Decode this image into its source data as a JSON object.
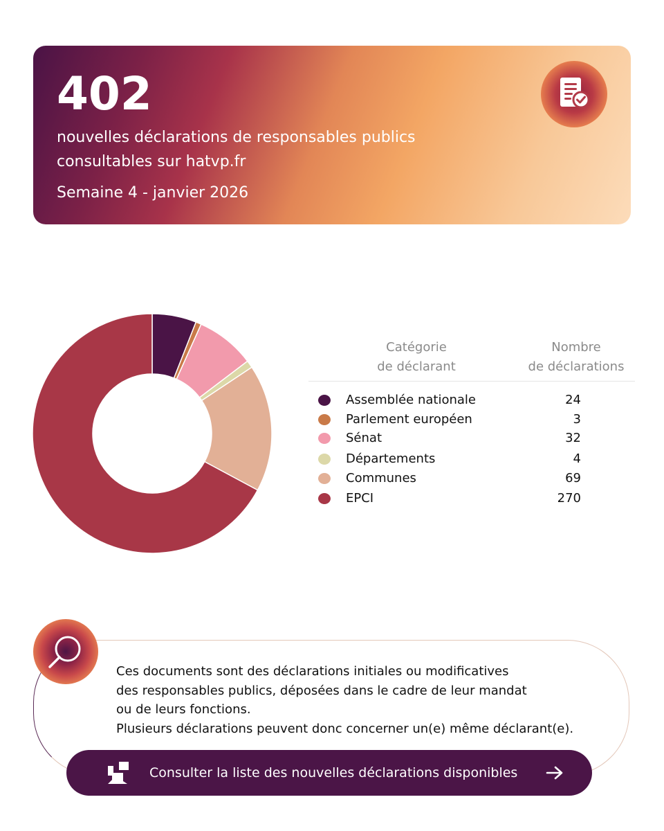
{
  "header": {
    "count": "402",
    "line1": "nouvelles déclarations de responsables publics",
    "line2": "consultables sur hatvp.fr",
    "week": "Semaine 4 - janvier 2026",
    "badge_icon": "document-check-icon"
  },
  "table": {
    "col_category": "Catégorie de déclarant",
    "col_category_l1": "Catégorie",
    "col_category_l2": "de déclarant",
    "col_count_l1": "Nombre",
    "col_count_l2": "de déclarations"
  },
  "chart_data": {
    "type": "pie",
    "donut": true,
    "categories": [
      "Assemblée nationale",
      "Parlement européen",
      "Sénat",
      "Départements",
      "Communes",
      "EPCI"
    ],
    "values": [
      24,
      3,
      32,
      4,
      69,
      270
    ],
    "colors": [
      "#4a1446",
      "#c97a48",
      "#f29aac",
      "#dcd8a8",
      "#e2b096",
      "#a83747"
    ],
    "legend_position": "right"
  },
  "rows": [
    {
      "label": "Assemblée nationale",
      "value": "24"
    },
    {
      "label": "Parlement européen",
      "value": "3"
    },
    {
      "label": "Sénat",
      "value": "32"
    },
    {
      "label": "Départements",
      "value": "4"
    },
    {
      "label": "Communes",
      "value": "69"
    },
    {
      "label": "EPCI",
      "value": "270"
    }
  ],
  "info": {
    "line1": "Ces documents sont des déclarations initiales ou modificatives",
    "line2": "des responsables publics, déposées dans le cadre de leur mandat",
    "line3": "ou de leurs fonctions.",
    "line4": "Plusieurs déclarations peuvent donc concerner un(e) même déclarant(e).",
    "badge_icon": "search-icon"
  },
  "cta": {
    "label": "Consulter la liste des nouvelles déclarations disponibles",
    "icon": "hatvp-logo-icon",
    "arrow_icon": "arrow-right-icon"
  },
  "colors": {
    "brand_dark": "#4b1547",
    "brand_red": "#a83747",
    "brand_orange": "#f3a664"
  }
}
